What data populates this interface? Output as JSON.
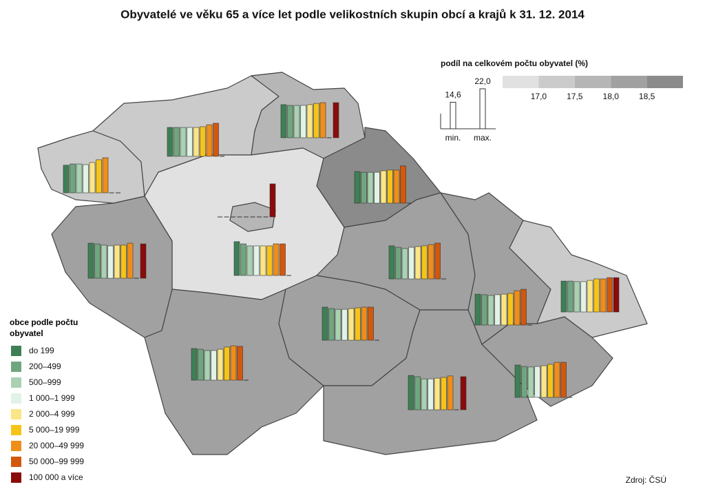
{
  "chart_data": {
    "type": "map-bars",
    "title": "Obyvatelé ve věku 65 a více let podle velikostních skupin obcí a krajů k 31. 12. 2014",
    "legend_title": "obce podle počtu obyvatel",
    "series": [
      {
        "name": "do 199",
        "color": "#3f7f55",
        "values": [
          15.2,
          15.9,
          18.2,
          17.4,
          18.6,
          null,
          19.3,
          17.4,
          18.2,
          18.2,
          18.9,
          17.0,
          17.8,
          17.0
        ]
      },
      {
        "name": "200–499",
        "color": "#70a67f",
        "values": [
          15.9,
          15.9,
          17.8,
          17.0,
          17.4,
          null,
          18.9,
          17.0,
          17.4,
          17.4,
          18.2,
          16.7,
          17.0,
          17.0
        ]
      },
      {
        "name": "500–999",
        "color": "#a9d1b2",
        "values": [
          15.9,
          15.9,
          17.8,
          17.0,
          16.3,
          null,
          18.2,
          16.3,
          17.0,
          16.7,
          17.0,
          16.3,
          16.7,
          16.7
        ]
      },
      {
        "name": "1 000–1 999",
        "color": "#e0f3e6",
        "values": [
          15.5,
          15.9,
          17.8,
          17.0,
          16.3,
          null,
          17.8,
          16.3,
          17.0,
          17.4,
          17.0,
          16.7,
          17.0,
          16.7
        ]
      },
      {
        "name": "2 000–4 999",
        "color": "#fbe586",
        "values": [
          16.7,
          15.9,
          18.2,
          17.8,
          16.3,
          null,
          18.2,
          17.0,
          17.4,
          17.8,
          17.4,
          17.0,
          17.4,
          17.4
        ]
      },
      {
        "name": "5 000–19 999",
        "color": "#f6c419",
        "values": [
          18.2,
          16.3,
          18.9,
          18.2,
          16.3,
          null,
          18.2,
          18.2,
          17.8,
          18.2,
          17.8,
          17.4,
          18.2,
          18.2
        ]
      },
      {
        "name": "20 000–49 999",
        "color": "#ef8e1b",
        "values": [
          19.3,
          17.4,
          19.3,
          18.2,
          17.4,
          null,
          19.3,
          18.9,
          18.2,
          18.9,
          18.6,
          18.9,
          19.3,
          18.2
        ]
      },
      {
        "name": "50 000–99 999",
        "color": "#d2580d",
        "values": [
          null,
          18.2,
          null,
          20.5,
          17.4,
          null,
          null,
          18.6,
          18.2,
          19.7,
          null,
          19.7,
          19.3,
          18.9
        ]
      },
      {
        "name": "100 000 a více",
        "color": "#8b0a0a",
        "values": [
          null,
          null,
          19.3,
          null,
          null,
          18.2,
          18.9,
          null,
          null,
          null,
          18.2,
          null,
          null,
          18.9
        ]
      }
    ],
    "share_title": "podíl na celkovém počtu obyvatel (%)",
    "share_ticks": [
      {
        "value": 17.0,
        "label": "17,0"
      },
      {
        "value": 17.5,
        "label": "17,5"
      },
      {
        "value": 18.0,
        "label": "18,0"
      },
      {
        "value": 18.5,
        "label": "18,5"
      }
    ],
    "share_colors": [
      "#e1e1e1",
      "#cbcbcb",
      "#b6b6b6",
      "#a1a1a1",
      "#8b8b8b"
    ],
    "region_share": [
      17.2,
      17.2,
      17.7,
      18.8,
      16.6,
      17.8,
      18.3,
      18.2,
      18.2,
      18.1,
      18.3,
      18.4,
      18.4,
      17.4
    ],
    "scale_legend": {
      "values": [
        14.6,
        22.0
      ],
      "value_labels": [
        "14,6",
        "22,0"
      ],
      "labels": [
        "min.",
        "max."
      ]
    },
    "source": "Zdroj: ČSÚ"
  }
}
